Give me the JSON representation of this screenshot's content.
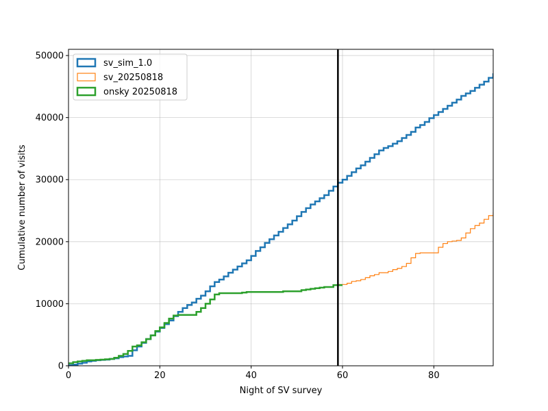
{
  "chart_data": {
    "type": "line",
    "title": "",
    "xlabel": "Night of SV survey",
    "ylabel": "Cumulative number of visits",
    "xlim": [
      0,
      93
    ],
    "ylim": [
      0,
      51000
    ],
    "xticks": [
      0,
      20,
      40,
      60,
      80
    ],
    "yticks": [
      0,
      10000,
      20000,
      30000,
      40000,
      50000
    ],
    "grid": true,
    "legend_position": "top-left",
    "step": true,
    "vline_x": 59,
    "series": [
      {
        "name": "sv_sim_1.0",
        "color": "#1f77b4",
        "x": [
          0,
          1,
          2,
          3,
          4,
          5,
          6,
          7,
          8,
          9,
          10,
          11,
          12,
          13,
          14,
          15,
          16,
          17,
          18,
          19,
          20,
          21,
          22,
          23,
          24,
          25,
          26,
          27,
          28,
          29,
          30,
          31,
          32,
          33,
          34,
          35,
          36,
          37,
          38,
          39,
          40,
          41,
          42,
          43,
          44,
          45,
          46,
          47,
          48,
          49,
          50,
          51,
          52,
          53,
          54,
          55,
          56,
          57,
          58,
          59,
          60,
          61,
          62,
          63,
          64,
          65,
          66,
          67,
          68,
          69,
          70,
          71,
          72,
          73,
          74,
          75,
          76,
          77,
          78,
          79,
          80,
          81,
          82,
          83,
          84,
          85,
          86,
          87,
          88,
          89,
          90,
          91,
          92,
          93
        ],
        "y": [
          100,
          200,
          350,
          500,
          700,
          800,
          900,
          950,
          1000,
          1100,
          1200,
          1400,
          1500,
          1600,
          2500,
          3100,
          3700,
          4300,
          4900,
          5500,
          6100,
          6700,
          7300,
          8000,
          8700,
          9300,
          9800,
          10200,
          10800,
          11300,
          12000,
          12800,
          13500,
          13900,
          14400,
          15000,
          15500,
          16000,
          16500,
          17000,
          17700,
          18500,
          19100,
          19800,
          20400,
          21000,
          21600,
          22200,
          22800,
          23400,
          24100,
          24800,
          25400,
          26000,
          26500,
          27000,
          27500,
          28200,
          28900,
          29500,
          30000,
          30600,
          31200,
          31800,
          32300,
          32900,
          33500,
          34100,
          34700,
          35100,
          35400,
          35800,
          36200,
          36700,
          37200,
          37700,
          38400,
          38800,
          39300,
          39900,
          40400,
          40900,
          41400,
          41900,
          42400,
          42900,
          43500,
          43900,
          44300,
          44800,
          45300,
          45800,
          46400,
          47000
        ]
      },
      {
        "name": "sv_20250818",
        "color": "#ff7f0e",
        "x": [
          59,
          60,
          61,
          62,
          63,
          64,
          65,
          66,
          67,
          68,
          69,
          70,
          71,
          72,
          73,
          74,
          75,
          76,
          77,
          78,
          79,
          80,
          81,
          82,
          83,
          84,
          85,
          86,
          87,
          88,
          89,
          90,
          91,
          92,
          93
        ],
        "y": [
          13100,
          13100,
          13300,
          13600,
          13700,
          13900,
          14200,
          14500,
          14700,
          15000,
          15000,
          15200,
          15500,
          15700,
          16000,
          16500,
          17400,
          18100,
          18200,
          18200,
          18200,
          18200,
          19100,
          19700,
          20000,
          20100,
          20200,
          20600,
          21400,
          22100,
          22600,
          23000,
          23600,
          24200,
          24700
        ]
      },
      {
        "name": "onsky 20250818",
        "color": "#2ca02c",
        "x": [
          0,
          1,
          2,
          3,
          4,
          5,
          6,
          7,
          8,
          9,
          10,
          11,
          12,
          13,
          14,
          15,
          16,
          17,
          18,
          19,
          20,
          21,
          22,
          23,
          24,
          25,
          26,
          27,
          28,
          29,
          30,
          31,
          32,
          33,
          34,
          35,
          36,
          37,
          38,
          39,
          40,
          41,
          42,
          43,
          44,
          45,
          46,
          47,
          48,
          49,
          50,
          51,
          52,
          53,
          54,
          55,
          56,
          57,
          58,
          59
        ],
        "y": [
          400,
          600,
          700,
          800,
          900,
          900,
          950,
          1000,
          1050,
          1100,
          1300,
          1600,
          1900,
          2400,
          3100,
          3300,
          3800,
          4300,
          4900,
          5600,
          6200,
          6900,
          7600,
          8100,
          8200,
          8200,
          8200,
          8200,
          8700,
          9300,
          10000,
          10700,
          11500,
          11700,
          11700,
          11700,
          11700,
          11700,
          11800,
          11900,
          11900,
          11900,
          11900,
          11900,
          11900,
          11900,
          11900,
          12000,
          12000,
          12000,
          12000,
          12200,
          12300,
          12400,
          12500,
          12600,
          12700,
          12700,
          13000,
          13000
        ]
      }
    ]
  }
}
